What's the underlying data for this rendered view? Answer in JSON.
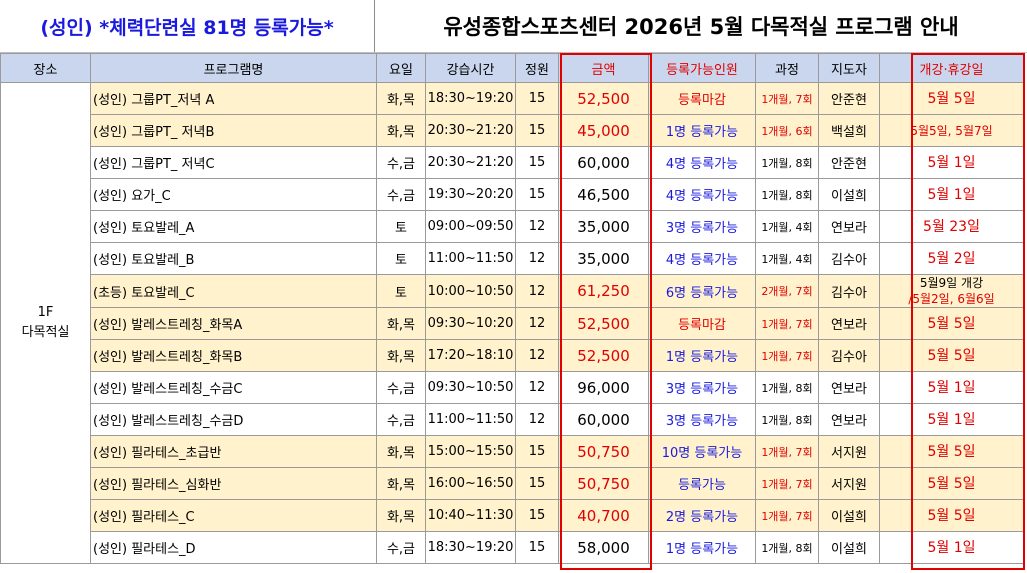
{
  "header": {
    "left_title": "(성인) *체력단련실 81명 등록가능*",
    "main_title": "유성종합스포츠센터 2026년 5월 다목적실 프로그램 안내"
  },
  "columns": [
    "장소",
    "프로그램명",
    "요일",
    "강습시간",
    "정원",
    "금액",
    "등록가능인원",
    "과정",
    "지도자",
    "개강·휴강일"
  ],
  "place": {
    "line1": "1F",
    "line2": "다목적실"
  },
  "rows": [
    {
      "program": "(성인) 그룹PT_저녁 A",
      "day": "화,목",
      "time": "18:30~19:20",
      "cap": "15",
      "fee": "52,500",
      "avail": "등록마감",
      "course": "1개월, 7회",
      "teacher": "안준현",
      "holiday": "5월 5일"
    },
    {
      "program": "(성인) 그룹PT_ 저녁B",
      "day": "화,목",
      "time": "20:30~21:20",
      "cap": "15",
      "fee": "45,000",
      "avail": "1명 등록가능",
      "course": "1개월, 6회",
      "teacher": "백설희",
      "holiday": "5월5일, 5월7일"
    },
    {
      "program": "(성인) 그룹PT_ 저녁C",
      "day": "수,금",
      "time": "20:30~21:20",
      "cap": "15",
      "fee": "60,000",
      "avail": "4명 등록가능",
      "course": "1개월, 8회",
      "teacher": "안준현",
      "holiday": "5월 1일"
    },
    {
      "program": "(성인) 요가_C",
      "day": "수,금",
      "time": "19:30~20:20",
      "cap": "15",
      "fee": "46,500",
      "avail": "4명 등록가능",
      "course": "1개월, 8회",
      "teacher": "이설희",
      "holiday": "5월 1일"
    },
    {
      "program": "(성인) 토요발레_A",
      "day": "토",
      "time": "09:00~09:50",
      "cap": "12",
      "fee": "35,000",
      "avail": "3명 등록가능",
      "course": "1개월, 4회",
      "teacher": "연보라",
      "holiday": "5월 23일"
    },
    {
      "program": "(성인) 토요발레_B",
      "day": "토",
      "time": "11:00~11:50",
      "cap": "12",
      "fee": "35,000",
      "avail": "4명 등록가능",
      "course": "1개월, 4회",
      "teacher": "김수아",
      "holiday": "5월 2일"
    },
    {
      "program": "(초등) 토요발레_C",
      "day": "토",
      "time": "10:00~10:50",
      "cap": "12",
      "fee": "61,250",
      "avail": "6명 등록가능",
      "course": "2개월, 7회",
      "teacher": "김수아",
      "holiday": "5월9일 개강",
      "holiday2": "/5월2일, 6월6일"
    },
    {
      "program": "(성인) 발레스트레칭_화목A",
      "day": "화,목",
      "time": "09:30~10:20",
      "cap": "12",
      "fee": "52,500",
      "avail": "등록마감",
      "course": "1개월, 7회",
      "teacher": "연보라",
      "holiday": "5월 5일"
    },
    {
      "program": "(성인) 발레스트레칭_화목B",
      "day": "화,목",
      "time": "17:20~18:10",
      "cap": "12",
      "fee": "52,500",
      "avail": "1명 등록가능",
      "course": "1개월, 7회",
      "teacher": "김수아",
      "holiday": "5월 5일"
    },
    {
      "program": "(성인) 발레스트레칭_수금C",
      "day": "수,금",
      "time": "09:30~10:50",
      "cap": "12",
      "fee": "96,000",
      "avail": "3명 등록가능",
      "course": "1개월, 8회",
      "teacher": "연보라",
      "holiday": "5월 1일"
    },
    {
      "program": "(성인) 발레스트레칭_수금D",
      "day": "수,금",
      "time": "11:00~11:50",
      "cap": "12",
      "fee": "60,000",
      "avail": "3명 등록가능",
      "course": "1개월, 8회",
      "teacher": "연보라",
      "holiday": "5월 1일"
    },
    {
      "program": "(성인) 필라테스_초급반",
      "day": "화,목",
      "time": "15:00~15:50",
      "cap": "15",
      "fee": "50,750",
      "avail": "10명 등록가능",
      "course": "1개월, 7회",
      "teacher": "서지원",
      "holiday": "5월 5일"
    },
    {
      "program": "(성인) 필라테스_심화반",
      "day": "화,목",
      "time": "16:00~16:50",
      "cap": "15",
      "fee": "50,750",
      "avail": "등록가능",
      "course": "1개월, 7회",
      "teacher": "서지원",
      "holiday": "5월 5일"
    },
    {
      "program": "(성인) 필라테스_C",
      "day": "화,목",
      "time": "10:40~11:30",
      "cap": "15",
      "fee": "40,700",
      "avail": "2명 등록가능",
      "course": "1개월, 7회",
      "teacher": "이설희",
      "holiday": "5월 5일"
    },
    {
      "program": "(성인) 필라테스_D",
      "day": "수,금",
      "time": "18:30~19:20",
      "cap": "15",
      "fee": "58,000",
      "avail": "1명 등록가능",
      "course": "1개월, 8회",
      "teacher": "이설희",
      "holiday": "5월 1일"
    }
  ],
  "colors": {
    "accent_red": "#e00000",
    "accent_blue": "#1a1adf",
    "header_bg": "#c9d6ee",
    "row_highlight": "#fff2cc"
  }
}
